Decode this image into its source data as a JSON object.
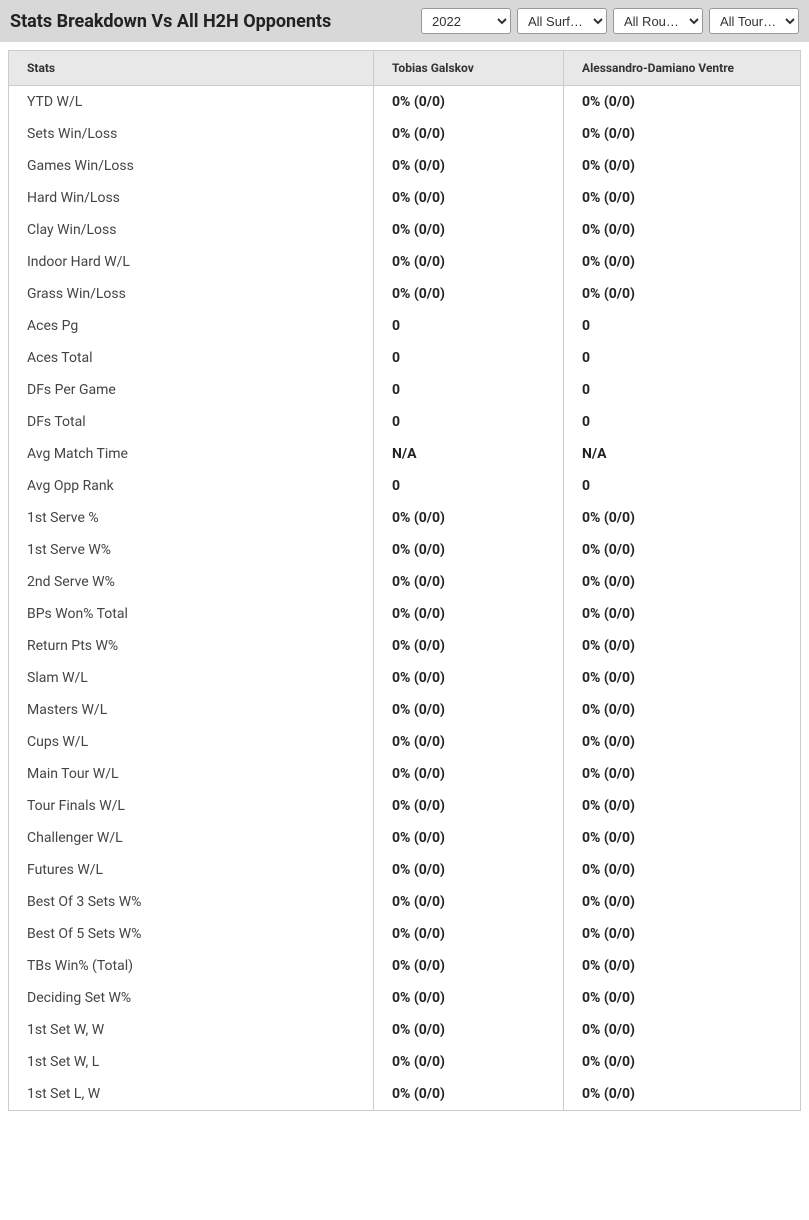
{
  "header": {
    "title": "Stats Breakdown Vs All H2H Opponents"
  },
  "filters": {
    "year": {
      "selected": "2022",
      "options": [
        "2022"
      ]
    },
    "surface": {
      "selected": "All Surf…",
      "options": [
        "All Surf…"
      ]
    },
    "round": {
      "selected": "All Rou…",
      "options": [
        "All Rou…"
      ]
    },
    "tour": {
      "selected": "All Tour…",
      "options": [
        "All Tour…"
      ]
    }
  },
  "table": {
    "columns": {
      "stats": "Stats",
      "player1": "Tobias Galskov",
      "player2": "Alessandro-Damiano Ventre"
    },
    "rows": [
      {
        "label": "YTD W/L",
        "p1": "0% (0/0)",
        "p2": "0% (0/0)"
      },
      {
        "label": "Sets Win/Loss",
        "p1": "0% (0/0)",
        "p2": "0% (0/0)"
      },
      {
        "label": "Games Win/Loss",
        "p1": "0% (0/0)",
        "p2": "0% (0/0)"
      },
      {
        "label": "Hard Win/Loss",
        "p1": "0% (0/0)",
        "p2": "0% (0/0)"
      },
      {
        "label": "Clay Win/Loss",
        "p1": "0% (0/0)",
        "p2": "0% (0/0)"
      },
      {
        "label": "Indoor Hard W/L",
        "p1": "0% (0/0)",
        "p2": "0% (0/0)"
      },
      {
        "label": "Grass Win/Loss",
        "p1": "0% (0/0)",
        "p2": "0% (0/0)"
      },
      {
        "label": "Aces Pg",
        "p1": "0",
        "p2": "0"
      },
      {
        "label": "Aces Total",
        "p1": "0",
        "p2": "0"
      },
      {
        "label": "DFs Per Game",
        "p1": "0",
        "p2": "0"
      },
      {
        "label": "DFs Total",
        "p1": "0",
        "p2": "0"
      },
      {
        "label": "Avg Match Time",
        "p1": "N/A",
        "p2": "N/A"
      },
      {
        "label": "Avg Opp Rank",
        "p1": "0",
        "p2": "0"
      },
      {
        "label": "1st Serve %",
        "p1": "0% (0/0)",
        "p2": "0% (0/0)"
      },
      {
        "label": "1st Serve W%",
        "p1": "0% (0/0)",
        "p2": "0% (0/0)"
      },
      {
        "label": "2nd Serve W%",
        "p1": "0% (0/0)",
        "p2": "0% (0/0)"
      },
      {
        "label": "BPs Won% Total",
        "p1": "0% (0/0)",
        "p2": "0% (0/0)"
      },
      {
        "label": "Return Pts W%",
        "p1": "0% (0/0)",
        "p2": "0% (0/0)"
      },
      {
        "label": "Slam W/L",
        "p1": "0% (0/0)",
        "p2": "0% (0/0)"
      },
      {
        "label": "Masters W/L",
        "p1": "0% (0/0)",
        "p2": "0% (0/0)"
      },
      {
        "label": "Cups W/L",
        "p1": "0% (0/0)",
        "p2": "0% (0/0)"
      },
      {
        "label": "Main Tour W/L",
        "p1": "0% (0/0)",
        "p2": "0% (0/0)"
      },
      {
        "label": "Tour Finals W/L",
        "p1": "0% (0/0)",
        "p2": "0% (0/0)"
      },
      {
        "label": "Challenger W/L",
        "p1": "0% (0/0)",
        "p2": "0% (0/0)"
      },
      {
        "label": "Futures W/L",
        "p1": "0% (0/0)",
        "p2": "0% (0/0)"
      },
      {
        "label": "Best Of 3 Sets W%",
        "p1": "0% (0/0)",
        "p2": "0% (0/0)"
      },
      {
        "label": "Best Of 5 Sets W%",
        "p1": "0% (0/0)",
        "p2": "0% (0/0)"
      },
      {
        "label": "TBs Win% (Total)",
        "p1": "0% (0/0)",
        "p2": "0% (0/0)"
      },
      {
        "label": "Deciding Set W%",
        "p1": "0% (0/0)",
        "p2": "0% (0/0)"
      },
      {
        "label": "1st Set W, W",
        "p1": "0% (0/0)",
        "p2": "0% (0/0)"
      },
      {
        "label": "1st Set W, L",
        "p1": "0% (0/0)",
        "p2": "0% (0/0)"
      },
      {
        "label": "1st Set L, W",
        "p1": "0% (0/0)",
        "p2": "0% (0/0)"
      }
    ]
  },
  "styling": {
    "header_bg": "#d8d8d8",
    "header_text_color": "#222222",
    "header_fontsize": 18,
    "table_header_bg": "#e8e8e8",
    "table_border_color": "#cccccc",
    "row_bg": "#ffffff",
    "label_color": "#444444",
    "value_color": "#222222",
    "value_fontweight": 700,
    "cell_fontsize": 14,
    "th_fontsize": 12
  }
}
